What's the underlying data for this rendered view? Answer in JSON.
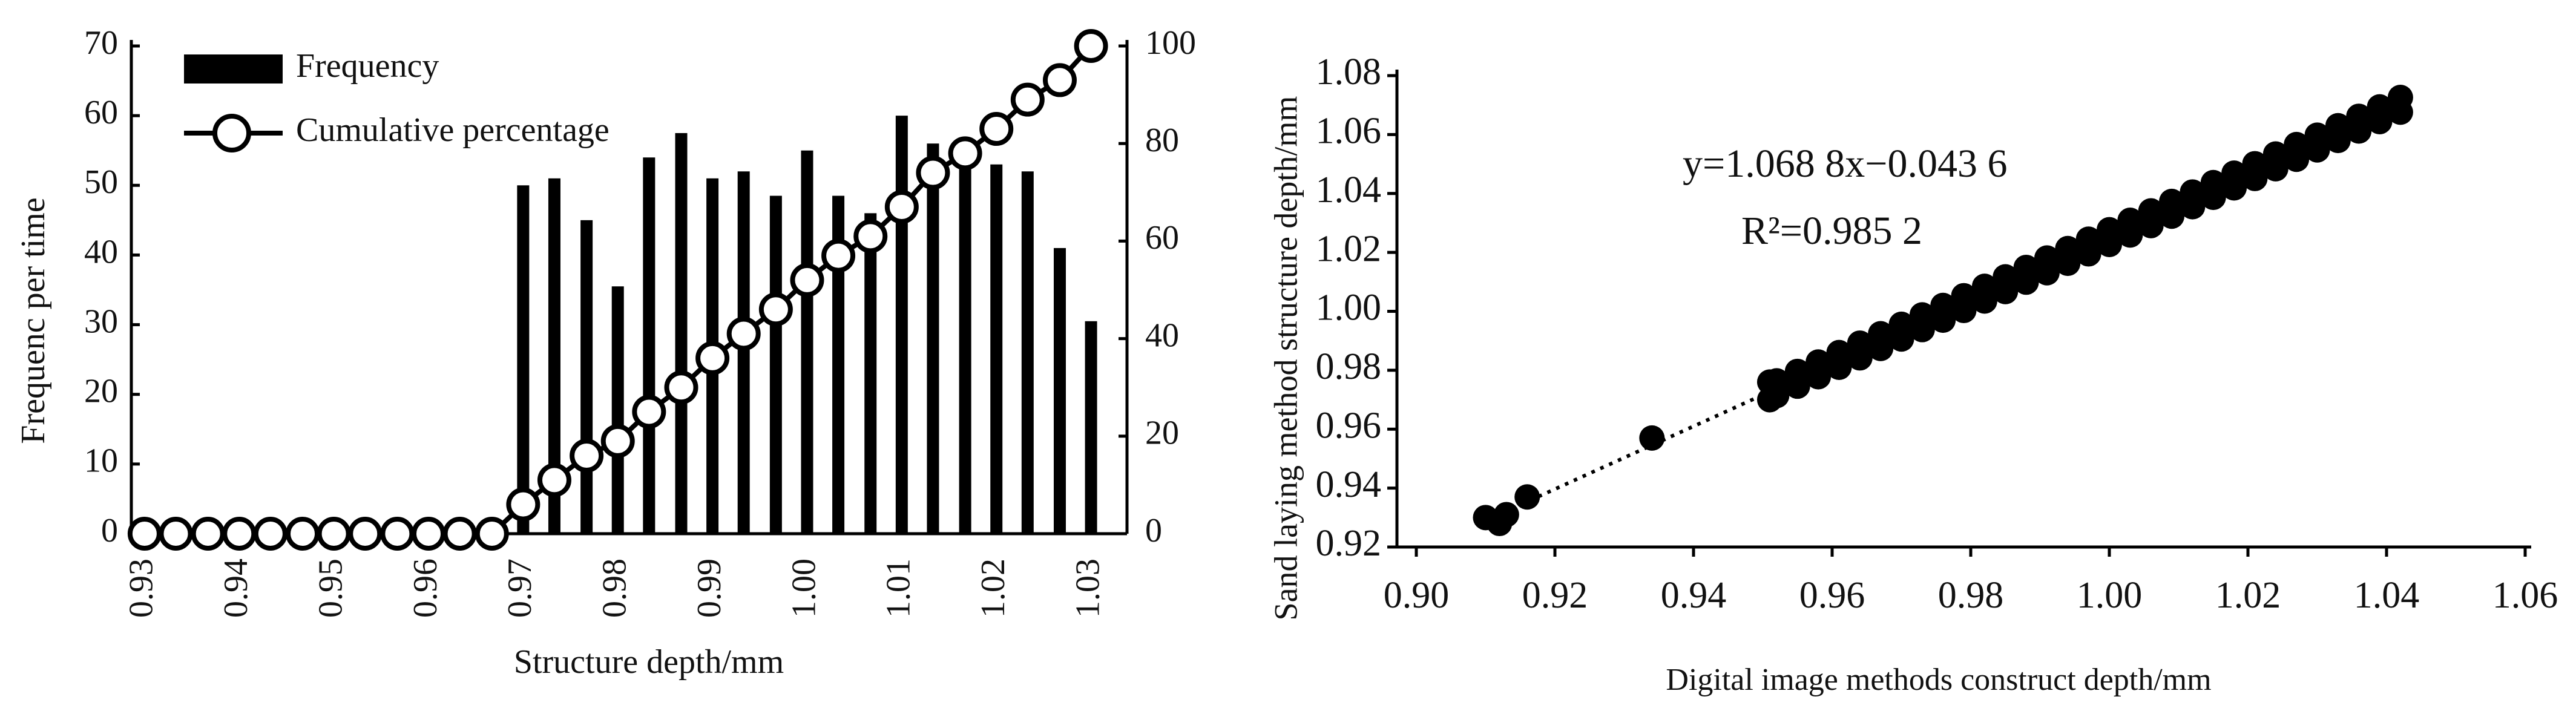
{
  "chart_data": [
    {
      "type": "bar-line",
      "x_label": "Structure depth/mm",
      "y_label": "Frequenc per time",
      "x": [
        0.93,
        0.9333,
        0.9367,
        0.94,
        0.9433,
        0.9467,
        0.95,
        0.9533,
        0.9567,
        0.96,
        0.9633,
        0.9667,
        0.97,
        0.9733,
        0.9767,
        0.98,
        0.9833,
        0.9867,
        0.99,
        0.9933,
        0.9967,
        1.0,
        1.0033,
        1.0067,
        1.01,
        1.0133,
        1.0167,
        1.02,
        1.0233,
        1.0267,
        1.03
      ],
      "series": [
        {
          "name": "Frequency",
          "type": "bar",
          "color": "#000000",
          "values": [
            null,
            null,
            null,
            null,
            null,
            null,
            null,
            null,
            null,
            null,
            null,
            null,
            50,
            51,
            45,
            35.5,
            54,
            57.5,
            51,
            52,
            48.5,
            55,
            48.5,
            46,
            60,
            56,
            55,
            53,
            52,
            41,
            30.5
          ]
        },
        {
          "name": "Cumulative percentage",
          "type": "line",
          "axis": "y2",
          "color": "#000000",
          "values": [
            0,
            0,
            0,
            0,
            0,
            0,
            0,
            0,
            0,
            0,
            0,
            0,
            6,
            11,
            16,
            19,
            25,
            30,
            36,
            41,
            46,
            52,
            57,
            61,
            67,
            74,
            78,
            83,
            89,
            93,
            100
          ]
        }
      ],
      "xlim": [
        0.9286,
        1.0338
      ],
      "xticks": [
        0.93,
        0.94,
        0.95,
        0.96,
        0.97,
        0.98,
        0.99,
        {
          "value": 1,
          "label": "1.00"
        },
        1.01,
        1.02,
        1.03
      ],
      "ylim": [
        0,
        70
      ],
      "yticks": [
        0,
        10,
        20,
        30,
        40,
        50,
        60,
        70
      ],
      "y2lim": [
        0,
        100
      ],
      "y2ticks": [
        0,
        20,
        40,
        60,
        80,
        100
      ],
      "legend": "top-left"
    },
    {
      "type": "scatter",
      "x_label": "Digital image methods construct depth/mm",
      "y_label": "Sand laying method structure depth/mm",
      "annotations": [
        "y=1.068 8x−0.043 6",
        "R²=0.985 2"
      ],
      "color": "#000000",
      "x": [
        0.91,
        0.912,
        0.913,
        0.916,
        0.934,
        0.951,
        0.951,
        0.952,
        0.955,
        0.958,
        0.961,
        0.964,
        0.967,
        0.97,
        0.973,
        0.976,
        0.979,
        0.982,
        0.985,
        0.988,
        0.991,
        0.994,
        0.997,
        1.0,
        1.003,
        1.006,
        1.009,
        1.012,
        1.015,
        1.018,
        1.021,
        1.024,
        1.027,
        1.03,
        1.033,
        1.036,
        1.039,
        1.042,
        0.952,
        0.955,
        0.958,
        0.961,
        0.964,
        0.967,
        0.97,
        0.973,
        0.976,
        0.979,
        0.982,
        0.985,
        0.988,
        0.991,
        0.994,
        0.997,
        1.0,
        1.003,
        1.006,
        1.009,
        1.012,
        1.015,
        1.018,
        1.021,
        1.024,
        1.027,
        1.03,
        1.033,
        1.036,
        1.039,
        1.042
      ],
      "y": [
        0.93,
        0.928,
        0.931,
        0.937,
        0.957,
        0.97,
        0.976,
        0.9714,
        0.9746,
        0.9778,
        0.981,
        0.9842,
        0.9874,
        0.9906,
        0.9938,
        0.997,
        1.0003,
        1.0035,
        1.0067,
        1.0099,
        1.0131,
        1.0163,
        1.0195,
        1.0227,
        1.0259,
        1.0291,
        1.0323,
        1.0355,
        1.0387,
        1.0419,
        1.0451,
        1.0484,
        1.0516,
        1.0548,
        1.058,
        1.0612,
        1.0644,
        1.0676,
        0.9764,
        0.9796,
        0.9828,
        0.986,
        0.9892,
        0.9924,
        0.9956,
        0.9988,
        1.002,
        1.0053,
        1.0085,
        1.0117,
        1.0149,
        1.0181,
        1.0213,
        1.0245,
        1.0277,
        1.0309,
        1.0341,
        1.0373,
        1.0405,
        1.0437,
        1.0469,
        1.0501,
        1.0534,
        1.0566,
        1.0598,
        1.063,
        1.0662,
        1.0694,
        1.0726
      ],
      "fit_line": {
        "x": [
          0.91,
          0.951
        ],
        "y": [
          0.929,
          0.9727
        ]
      },
      "xlim": [
        0.9,
        1.06
      ],
      "xticks": [
        {
          "value": 0.9,
          "label": "0.90"
        },
        0.92,
        0.94,
        0.96,
        0.98,
        {
          "value": 1,
          "label": "1.00"
        },
        1.02,
        1.04,
        1.06
      ],
      "ylim": [
        0.92,
        1.08
      ],
      "yticks": [
        0.92,
        0.94,
        0.96,
        0.98,
        {
          "value": 1,
          "label": "1.00"
        },
        1.02,
        1.04,
        1.06,
        1.08
      ]
    }
  ]
}
